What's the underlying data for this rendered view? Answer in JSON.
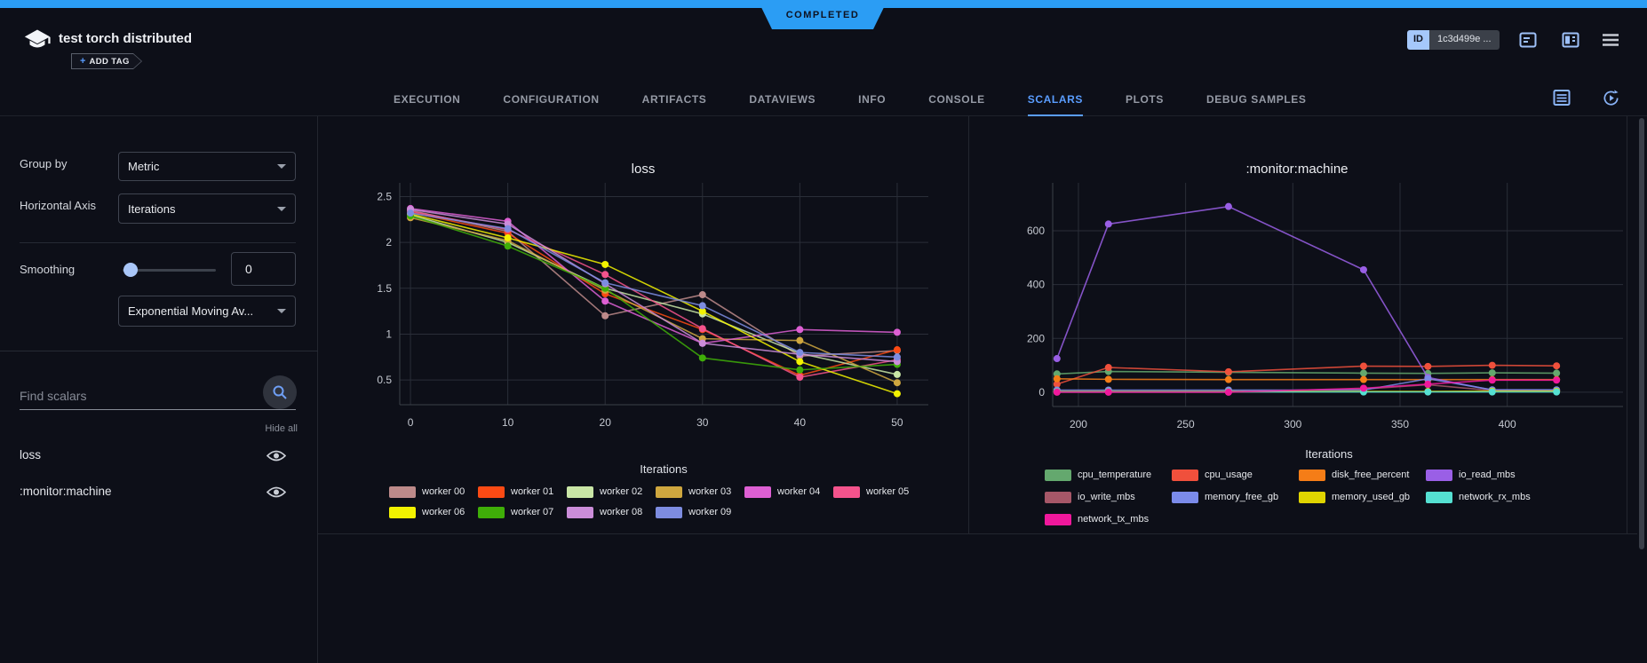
{
  "status": {
    "label": "COMPLETED"
  },
  "header": {
    "title": "test torch distributed",
    "add_tag": {
      "plus": "+",
      "label": "ADD TAG"
    },
    "id_chip": {
      "label": "ID",
      "value": "1c3d499e ..."
    }
  },
  "tabs": {
    "items": [
      "EXECUTION",
      "CONFIGURATION",
      "ARTIFACTS",
      "DATAVIEWS",
      "INFO",
      "CONSOLE",
      "SCALARS",
      "PLOTS",
      "DEBUG SAMPLES"
    ],
    "active": "SCALARS"
  },
  "sidebar": {
    "group_by": {
      "label": "Group by",
      "value": "Metric"
    },
    "horizontal_axis": {
      "label": "Horizontal Axis",
      "value": "Iterations"
    },
    "smoothing": {
      "label": "Smoothing",
      "value": "0",
      "method": "Exponential Moving Av..."
    },
    "search": {
      "placeholder": "Find scalars"
    },
    "hide_all_label": "Hide all",
    "metrics": [
      {
        "name": "loss"
      },
      {
        "name": ":monitor:machine"
      }
    ]
  },
  "chart_data": [
    {
      "type": "line",
      "title": "loss",
      "xlabel": "Iterations",
      "grid": true,
      "legend_position": "bottom",
      "x": [
        0,
        10,
        20,
        30,
        40,
        50
      ],
      "xticks": [
        0,
        10,
        20,
        30,
        40,
        50
      ],
      "yticks": [
        0.5,
        1,
        1.5,
        2,
        2.5
      ],
      "xlim": [
        -1.1,
        53.2
      ],
      "ylim": [
        0.23,
        2.65
      ],
      "series": [
        {
          "name": "worker 00",
          "color": "#bd8a8a",
          "values": [
            2.35,
            2.12,
            1.2,
            1.43,
            0.76,
            0.82
          ]
        },
        {
          "name": "worker 01",
          "color": "#fb4a14",
          "values": [
            2.33,
            2.1,
            1.44,
            1.05,
            0.55,
            0.83
          ]
        },
        {
          "name": "worker 02",
          "color": "#c9e6a6",
          "values": [
            2.3,
            2.0,
            1.5,
            1.22,
            0.79,
            0.56
          ]
        },
        {
          "name": "worker 03",
          "color": "#cfa73f",
          "values": [
            2.27,
            2.02,
            1.48,
            0.95,
            0.93,
            0.47
          ]
        },
        {
          "name": "worker 04",
          "color": "#dd5fd3",
          "values": [
            2.37,
            2.23,
            1.36,
            0.9,
            1.05,
            1.02
          ]
        },
        {
          "name": "worker 05",
          "color": "#f4538c",
          "values": [
            2.34,
            2.14,
            1.65,
            1.06,
            0.53,
            0.72
          ]
        },
        {
          "name": "worker 06",
          "color": "#f2f200",
          "values": [
            2.31,
            2.05,
            1.76,
            1.25,
            0.7,
            0.35
          ]
        },
        {
          "name": "worker 07",
          "color": "#3fae08",
          "values": [
            2.29,
            1.96,
            1.5,
            0.74,
            0.61,
            0.67
          ]
        },
        {
          "name": "worker 08",
          "color": "#cb8dd9",
          "values": [
            2.36,
            2.2,
            1.55,
            0.9,
            0.78,
            0.7
          ]
        },
        {
          "name": "worker 09",
          "color": "#7d8ce0",
          "values": [
            2.32,
            2.15,
            1.56,
            1.31,
            0.8,
            0.75
          ]
        }
      ]
    },
    {
      "type": "line",
      "title": ":monitor:machine",
      "xlabel": "Iterations",
      "grid": true,
      "legend_position": "bottom",
      "x": [
        190,
        214,
        270,
        333,
        363,
        393,
        423
      ],
      "xticks": [
        200,
        250,
        300,
        350,
        400
      ],
      "yticks": [
        0,
        200,
        400,
        600
      ],
      "xlim": [
        188,
        454
      ],
      "ylim": [
        -53,
        778
      ],
      "series": [
        {
          "name": "cpu_temperature",
          "color": "#64a86e",
          "values": [
            68,
            77,
            74,
            71,
            70,
            72,
            71
          ]
        },
        {
          "name": "cpu_usage",
          "color": "#f0503c",
          "values": [
            30,
            92,
            76,
            97,
            96,
            100,
            98
          ]
        },
        {
          "name": "disk_free_percent",
          "color": "#f57d17",
          "values": [
            50,
            48,
            47,
            47,
            47,
            47,
            47
          ]
        },
        {
          "name": "io_read_mbs",
          "color": "#9a5fe6",
          "values": [
            125,
            625,
            690,
            455,
            55,
            8,
            8
          ]
        },
        {
          "name": "io_write_mbs",
          "color": "#a65768",
          "values": [
            3,
            3,
            3,
            12,
            28,
            6,
            5
          ]
        },
        {
          "name": "memory_free_gb",
          "color": "#7b8bea",
          "values": [
            8,
            8,
            8,
            8,
            50,
            9,
            9
          ]
        },
        {
          "name": "memory_used_gb",
          "color": "#e0d400",
          "values": [
            2,
            2,
            2,
            3,
            3,
            4,
            4
          ]
        },
        {
          "name": "network_rx_mbs",
          "color": "#55e0d2",
          "values": [
            1,
            1,
            1,
            1,
            1,
            1,
            1
          ]
        },
        {
          "name": "network_tx_mbs",
          "color": "#f0189c",
          "values": [
            0,
            0,
            0,
            15,
            30,
            45,
            45
          ]
        }
      ]
    }
  ]
}
